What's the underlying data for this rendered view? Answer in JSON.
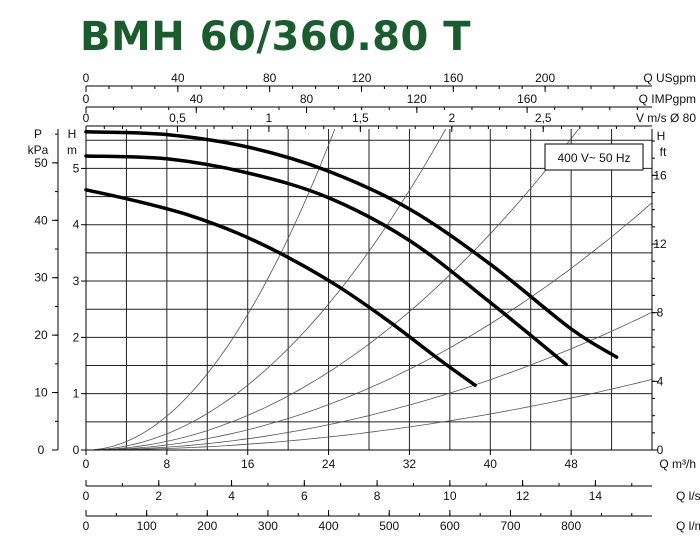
{
  "chart_data": {
    "type": "line",
    "title": "BMH 60/360.80 T",
    "annotation": "400 V~ 50 Hz",
    "x_axis": {
      "label": "Q m³/h",
      "range": [
        0,
        56
      ],
      "ticks": [
        "0",
        "8",
        "16",
        "24",
        "32",
        "40",
        "48"
      ],
      "tick_values": [
        0,
        8,
        16,
        24,
        32,
        40,
        48
      ]
    },
    "top_axes": [
      {
        "label": "Q USgpm",
        "ticks": [
          "0",
          "40",
          "80",
          "120",
          "160",
          "200"
        ],
        "tick_values": [
          0,
          40,
          80,
          120,
          160,
          200
        ]
      },
      {
        "label": "Q IMPgpm",
        "ticks": [
          "0",
          "40",
          "80",
          "120",
          "160"
        ],
        "tick_values": [
          0,
          40,
          80,
          120,
          160
        ]
      },
      {
        "label": "V m/s Ø 80",
        "ticks": [
          "0",
          "0,5",
          "1",
          "1,5",
          "2",
          "2,5"
        ],
        "tick_values": [
          0,
          0.5,
          1,
          1.5,
          2,
          2.5
        ]
      }
    ],
    "bottom_axes": [
      {
        "label": "Q l/s",
        "ticks": [
          "0",
          "2",
          "4",
          "6",
          "8",
          "10",
          "12",
          "14"
        ],
        "tick_values": [
          0,
          2,
          4,
          6,
          8,
          10,
          12,
          14
        ]
      },
      {
        "label": "Q l/min",
        "ticks": [
          "0",
          "100",
          "200",
          "300",
          "400",
          "500",
          "600",
          "700",
          "800"
        ],
        "tick_values": [
          0,
          100,
          200,
          300,
          400,
          500,
          600,
          700,
          800
        ]
      }
    ],
    "left_axes": [
      {
        "label_top": "P",
        "label_bottom": "kPa",
        "ticks": [
          "0",
          "10",
          "20",
          "30",
          "40",
          "50"
        ],
        "tick_values": [
          0,
          10,
          20,
          30,
          40,
          50
        ]
      },
      {
        "label_top": "H",
        "label_bottom": "m",
        "ticks": [
          "0",
          "1",
          "2",
          "3",
          "4",
          "5"
        ],
        "tick_values": [
          0,
          1,
          2,
          3,
          4,
          5
        ]
      }
    ],
    "right_axis": {
      "label_top": "H",
      "label_bottom": "ft",
      "ticks": [
        "0",
        "4",
        "8",
        "12",
        "16"
      ],
      "tick_values": [
        0,
        4,
        8,
        12,
        16
      ]
    },
    "y_range_m": [
      0,
      5.7
    ],
    "series": [
      {
        "x": [
          0,
          5,
          10,
          15,
          20,
          25,
          30,
          35,
          38.5
        ],
        "y": [
          4.62,
          4.42,
          4.18,
          3.85,
          3.42,
          2.9,
          2.28,
          1.6,
          1.15
        ]
      },
      {
        "x": [
          0,
          8,
          16,
          24,
          32,
          40,
          47.5
        ],
        "y": [
          5.22,
          5.17,
          4.92,
          4.48,
          3.72,
          2.62,
          1.52
        ]
      },
      {
        "x": [
          0,
          8,
          16,
          24,
          32,
          40,
          48,
          52.5
        ],
        "y": [
          5.65,
          5.6,
          5.38,
          4.95,
          4.28,
          3.3,
          2.15,
          1.65
        ]
      }
    ],
    "system_curve_coefficients": [
      0.0094,
      0.0045,
      0.0024,
      0.0014,
      0.00078,
      0.0004
    ]
  }
}
